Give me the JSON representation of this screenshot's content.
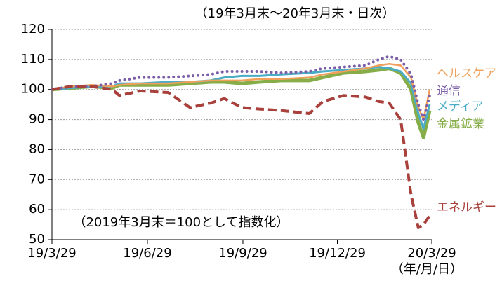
{
  "chart_data": {
    "type": "line",
    "subtitle": "（19年3月末～20年3月末・日次）",
    "annotation": "（2019年3月末＝100として指数化）",
    "x_unit": "（年/月/日）",
    "x": [
      "2019-03-29",
      "2019-04-16",
      "2019-05-06",
      "2019-05-26",
      "2019-06-02",
      "2019-06-22",
      "2019-07-19",
      "2019-08-09",
      "2019-08-29",
      "2019-09-11",
      "2019-09-28",
      "2019-10-15",
      "2019-11-05",
      "2019-12-02",
      "2019-12-15",
      "2020-01-04",
      "2020-01-25",
      "2020-02-07",
      "2020-02-17",
      "2020-02-28",
      "2020-03-09",
      "2020-03-16",
      "2020-03-21",
      "2020-03-27"
    ],
    "xlim": [
      "2019-03-29",
      "2020-03-29"
    ],
    "xticks": [
      {
        "value": "2019-03-29",
        "label": "19/3/29"
      },
      {
        "value": "2019-06-29",
        "label": "19/6/29"
      },
      {
        "value": "2019-09-29",
        "label": "19/9/29"
      },
      {
        "value": "2019-12-29",
        "label": "19/12/29"
      },
      {
        "value": "2020-03-29",
        "label": "20/3/29"
      }
    ],
    "ylim": [
      50,
      120
    ],
    "yticks": [
      50,
      60,
      70,
      80,
      90,
      100,
      110,
      120
    ],
    "grid": true,
    "series": [
      {
        "name": "ヘルスケア",
        "color": "#f0a05a",
        "values": [
          100,
          101,
          101.5,
          101,
          101.5,
          102,
          102,
          102.5,
          103,
          103,
          103,
          103.5,
          103.5,
          104,
          105,
          106,
          107,
          108,
          108.5,
          108,
          104,
          94,
          90,
          100
        ]
      },
      {
        "name": "通信",
        "color": "#7b5ea7",
        "values": [
          100,
          101,
          101,
          102,
          103,
          104,
          104,
          104.5,
          105,
          106,
          106,
          106,
          105.5,
          106,
          107,
          107.5,
          108,
          110,
          111,
          110,
          105,
          95,
          90,
          98
        ]
      },
      {
        "name": "メディア",
        "color": "#4bacc6",
        "values": [
          100,
          100.5,
          101,
          101,
          102,
          102,
          102.5,
          102.5,
          103,
          104,
          104.5,
          104.5,
          105,
          105.5,
          106,
          106.5,
          107,
          107.5,
          107,
          106,
          102,
          92,
          87,
          95
        ]
      },
      {
        "name": "金属鉱業",
        "color": "#86ad47",
        "values": [
          100,
          100.5,
          101,
          100.5,
          101.5,
          101.5,
          101.5,
          102,
          102.5,
          102.5,
          102,
          102.5,
          103,
          103,
          104,
          105.5,
          106,
          106.5,
          107,
          105.5,
          100,
          89,
          84,
          93
        ]
      },
      {
        "name": "エネルギー",
        "color": "#a8403c",
        "values": [
          100,
          101,
          101,
          100,
          98,
          99.5,
          99,
          94,
          95.5,
          97,
          94,
          93.5,
          93,
          92,
          96,
          98,
          97.5,
          96,
          95.5,
          90,
          65,
          54,
          55,
          58
        ]
      }
    ]
  }
}
